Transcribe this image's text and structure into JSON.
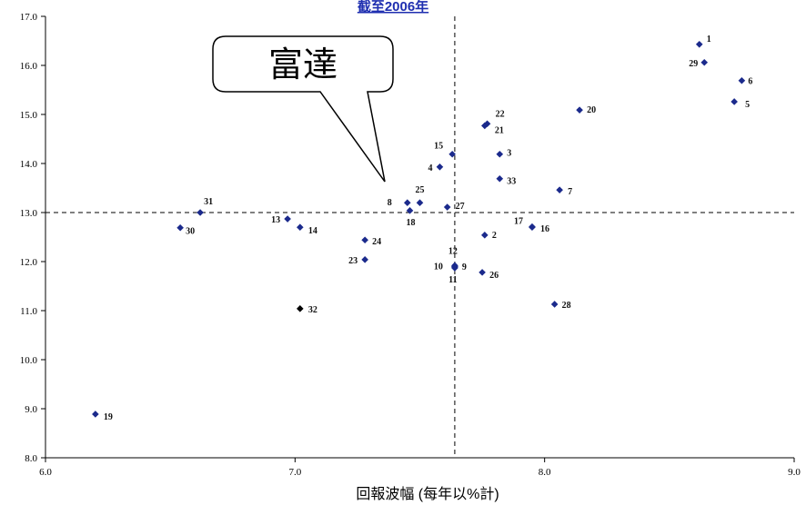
{
  "chart_data": {
    "type": "scatter",
    "title": "截至2006年",
    "xlabel": "回報波幅 (每年以%計)",
    "ylabel": "",
    "xlim": [
      6.0,
      9.0
    ],
    "ylim": [
      8.0,
      17.0
    ],
    "xticks": [
      "6.0",
      "7.0",
      "8.0",
      "9.0"
    ],
    "yticks": [
      "17.0",
      "16.0",
      "15.0",
      "14.0",
      "13.0",
      "12.0",
      "11.0",
      "10.0",
      "9.0",
      "8.0"
    ],
    "grid": false,
    "reference_lines": {
      "x": 7.64,
      "y": 13.0,
      "style": "dashed"
    },
    "marker": "diamond",
    "marker_color": "#1b2a8c",
    "points": [
      {
        "label": "1",
        "x": 8.62,
        "y": 16.43
      },
      {
        "label": "29",
        "x": 8.64,
        "y": 16.06
      },
      {
        "label": "6",
        "x": 8.79,
        "y": 15.69
      },
      {
        "label": "5",
        "x": 8.76,
        "y": 15.26
      },
      {
        "label": "20",
        "x": 8.14,
        "y": 15.09
      },
      {
        "label": "22",
        "x": 7.77,
        "y": 14.81
      },
      {
        "label": "21",
        "x": 7.76,
        "y": 14.77
      },
      {
        "label": "15",
        "x": 7.63,
        "y": 14.19
      },
      {
        "label": "3",
        "x": 7.82,
        "y": 14.19
      },
      {
        "label": "4",
        "x": 7.58,
        "y": 13.93
      },
      {
        "label": "33",
        "x": 7.82,
        "y": 13.69
      },
      {
        "label": "7",
        "x": 8.06,
        "y": 13.46
      },
      {
        "label": "8",
        "x": 7.45,
        "y": 13.2
      },
      {
        "label": "25",
        "x": 7.5,
        "y": 13.2
      },
      {
        "label": "27",
        "x": 7.61,
        "y": 13.11
      },
      {
        "label": "18",
        "x": 7.46,
        "y": 13.04
      },
      {
        "label": "31",
        "x": 6.62,
        "y": 13.0
      },
      {
        "label": "13",
        "x": 6.97,
        "y": 12.87
      },
      {
        "label": "14",
        "x": 7.02,
        "y": 12.7
      },
      {
        "label": "30",
        "x": 6.54,
        "y": 12.69
      },
      {
        "label": "17",
        "x": 7.95,
        "y": 12.71
      },
      {
        "label": "16",
        "x": 7.95,
        "y": 12.7
      },
      {
        "label": "2",
        "x": 7.76,
        "y": 12.54
      },
      {
        "label": "24",
        "x": 7.28,
        "y": 12.44
      },
      {
        "label": "23",
        "x": 7.28,
        "y": 12.04
      },
      {
        "label": "12",
        "x": 7.64,
        "y": 11.92
      },
      {
        "label": "10",
        "x": 7.64,
        "y": 11.9
      },
      {
        "label": "9",
        "x": 7.64,
        "y": 11.89
      },
      {
        "label": "11",
        "x": 7.64,
        "y": 11.87
      },
      {
        "label": "26",
        "x": 7.75,
        "y": 11.78
      },
      {
        "label": "28",
        "x": 8.04,
        "y": 11.13
      },
      {
        "label": "32",
        "x": 7.02,
        "y": 11.04,
        "color": "#000000"
      },
      {
        "label": "19",
        "x": 6.2,
        "y": 8.89
      }
    ],
    "annotation": {
      "text": "富達"
    }
  },
  "colors": {
    "title": "#1f2fb0",
    "axis": "#000000"
  }
}
